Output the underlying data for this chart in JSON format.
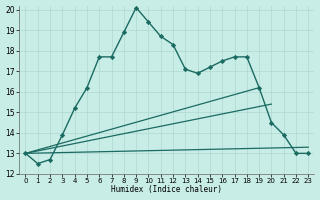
{
  "xlabel": "Humidex (Indice chaleur)",
  "xlim": [
    -0.5,
    23.5
  ],
  "ylim": [
    12,
    20.2
  ],
  "yticks": [
    12,
    13,
    14,
    15,
    16,
    17,
    18,
    19,
    20
  ],
  "xticks": [
    0,
    1,
    2,
    3,
    4,
    5,
    6,
    7,
    8,
    9,
    10,
    11,
    12,
    13,
    14,
    15,
    16,
    17,
    18,
    19,
    20,
    21,
    22,
    23
  ],
  "bg_color": "#c8ece6",
  "grid_color": "#b0d8d0",
  "line_color": "#1a6b62",
  "lines": [
    {
      "x": [
        0,
        1,
        2,
        3,
        4,
        5,
        6,
        7,
        8,
        9,
        10,
        11,
        12,
        13,
        14,
        15,
        16,
        17,
        18,
        19,
        20,
        21,
        22,
        23
      ],
      "y": [
        13.0,
        12.5,
        12.7,
        13.9,
        15.2,
        16.2,
        17.7,
        17.7,
        18.9,
        20.1,
        19.4,
        18.7,
        18.3,
        17.1,
        16.9,
        17.2,
        17.5,
        17.7,
        17.7,
        16.2,
        14.5,
        13.9,
        13.0,
        13.0
      ],
      "marker": "D",
      "markersize": 2.2,
      "linewidth": 1.0,
      "has_marker": true
    },
    {
      "x": [
        0,
        19
      ],
      "y": [
        13.0,
        16.2
      ],
      "marker": null,
      "markersize": 0,
      "linewidth": 0.9,
      "has_marker": false
    },
    {
      "x": [
        0,
        20
      ],
      "y": [
        13.0,
        15.4
      ],
      "marker": null,
      "markersize": 0,
      "linewidth": 0.9,
      "has_marker": false
    },
    {
      "x": [
        0,
        23
      ],
      "y": [
        13.0,
        13.3
      ],
      "marker": null,
      "markersize": 0,
      "linewidth": 0.9,
      "has_marker": false
    }
  ]
}
